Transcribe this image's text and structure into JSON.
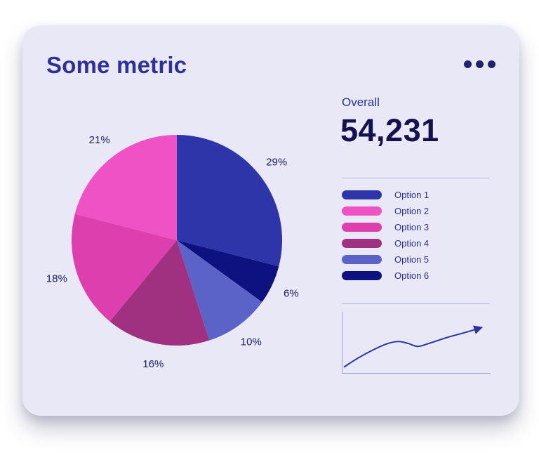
{
  "card": {
    "title": "Some metric",
    "menu_icon": "kebab-menu-icon"
  },
  "overall": {
    "label": "Overall",
    "value": "54,231"
  },
  "legend": {
    "position": "right",
    "items": [
      {
        "label": "Option 1",
        "color": "#2d35a8"
      },
      {
        "label": "Option 2",
        "color": "#ee52c4"
      },
      {
        "label": "Option 3",
        "color": "#de3fae"
      },
      {
        "label": "Option 4",
        "color": "#a03180"
      },
      {
        "label": "Option 5",
        "color": "#5b63c8"
      },
      {
        "label": "Option 6",
        "color": "#0e1280"
      }
    ]
  },
  "chart_data": [
    {
      "type": "pie",
      "title": "Some metric",
      "start_angle_deg": 0,
      "direction": "clockwise",
      "legend_position": "right",
      "segments": [
        {
          "label": "Option 1",
          "value": 29,
          "display": "29%",
          "color": "#2d35a8"
        },
        {
          "label": "Option 6",
          "value": 6,
          "display": "6%",
          "color": "#0e1280"
        },
        {
          "label": "Option 5",
          "value": 10,
          "display": "10%",
          "color": "#5b63c8"
        },
        {
          "label": "Option 4",
          "value": 16,
          "display": "16%",
          "color": "#a03180"
        },
        {
          "label": "Option 3",
          "value": 18,
          "display": "18%",
          "color": "#de3fae"
        },
        {
          "label": "Option 2",
          "value": 21,
          "display": "21%",
          "color": "#ee52c4"
        }
      ]
    },
    {
      "type": "line",
      "name": "trend-sparkline",
      "color": "#2b339f",
      "arrow_end": true,
      "axes": true,
      "x": [
        0,
        10,
        22,
        32,
        40,
        47,
        54,
        62,
        75,
        88,
        100
      ],
      "y": [
        4,
        22,
        40,
        52,
        56,
        52,
        46,
        52,
        64,
        74,
        84
      ]
    }
  ],
  "theme": {
    "page_background": "#ffffff",
    "card_background": "#e9e8f7",
    "title_color": "#2f3198",
    "value_color": "#15104e",
    "pie_label_color": "#1d2166",
    "divider_color": "#b6b8de",
    "axis_color": "#9aa0d0",
    "trend_line_color": "#2b339f",
    "menu_dot_color": "#20246f"
  }
}
